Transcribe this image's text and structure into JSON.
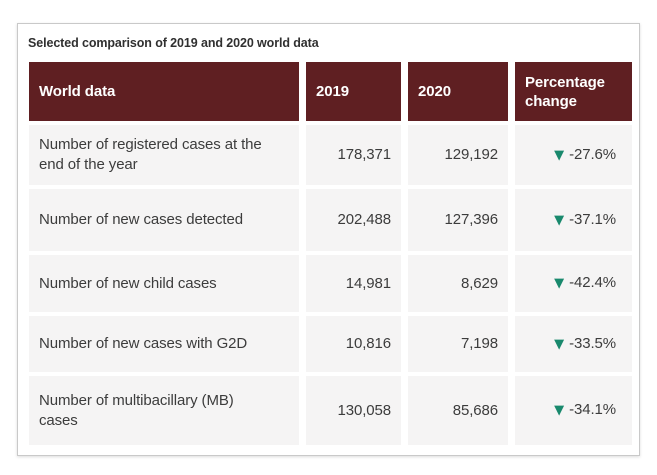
{
  "title": "Selected comparison of 2019 and 2020 world data",
  "colors": {
    "header_bg": "#5f1f22",
    "header_text": "#ffffff",
    "cell_bg": "#f5f4f4",
    "body_text": "#3c3c3c",
    "arrow_down": "#19896d",
    "card_border": "#c9c9c9"
  },
  "icons": {
    "down_arrow": "▼"
  },
  "table": {
    "headers": [
      "World data",
      "2019",
      "2020",
      "Percentage change"
    ],
    "rows": [
      {
        "label": "Number of registered cases at the end of the year",
        "y2019": "178,371",
        "y2020": "129,192",
        "change": "-27.6%"
      },
      {
        "label": "Number of new cases detected",
        "y2019": "202,488",
        "y2020": "127,396",
        "change": "-37.1%"
      },
      {
        "label": "Number of new child cases",
        "y2019": "14,981",
        "y2020": "8,629",
        "change": "-42.4%"
      },
      {
        "label": "Number of new cases with G2D",
        "y2019": "10,816",
        "y2020": "7,198",
        "change": "-33.5%"
      },
      {
        "label": "Number of multibacillary (MB) cases",
        "y2019": "130,058",
        "y2020": "85,686",
        "change": "-34.1%"
      }
    ]
  },
  "chart_data": {
    "type": "table",
    "title": "Selected comparison of 2019 and 2020 world data",
    "columns": [
      "World data",
      "2019",
      "2020",
      "Percentage change"
    ],
    "rows": [
      {
        "world_data": "Number of registered cases at the end of the year",
        "value_2019": 178371,
        "value_2020": 129192,
        "percentage_change": -27.6,
        "trend": "down"
      },
      {
        "world_data": "Number of new cases detected",
        "value_2019": 202488,
        "value_2020": 127396,
        "percentage_change": -37.1,
        "trend": "down"
      },
      {
        "world_data": "Number of new child cases",
        "value_2019": 14981,
        "value_2020": 8629,
        "percentage_change": -42.4,
        "trend": "down"
      },
      {
        "world_data": "Number of new cases with G2D",
        "value_2019": 10816,
        "value_2020": 7198,
        "percentage_change": -33.5,
        "trend": "down"
      },
      {
        "world_data": "Number of multibacillary (MB) cases",
        "value_2019": 130058,
        "value_2020": 85686,
        "percentage_change": -34.1,
        "trend": "down"
      }
    ]
  }
}
